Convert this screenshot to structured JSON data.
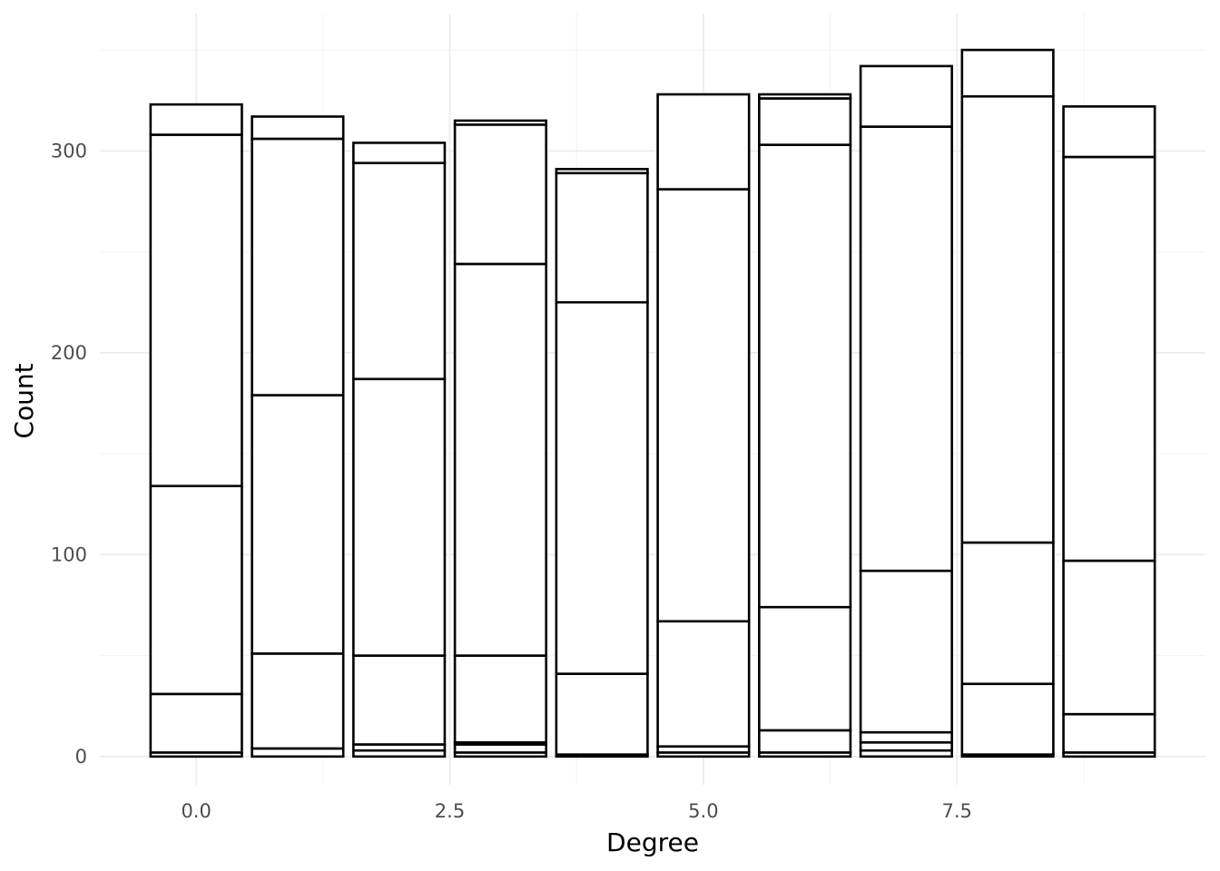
{
  "chart_data": {
    "type": "bar",
    "stacked": true,
    "xlabel": "Degree",
    "ylabel": "Count",
    "xlim": [
      -0.95,
      9.95
    ],
    "ylim": [
      -14,
      368
    ],
    "x_ticks": [
      0,
      2.5,
      5,
      7.5
    ],
    "x_tick_labels": [
      "0.0",
      "2.5",
      "5.0",
      "7.5"
    ],
    "y_ticks": [
      0,
      100,
      200,
      300
    ],
    "y_tick_labels": [
      "0",
      "100",
      "200",
      "300"
    ],
    "grid": true,
    "legend": "none",
    "bar_width": 0.9,
    "x": [
      0,
      1,
      2,
      3,
      4,
      5,
      6,
      7,
      8,
      9
    ],
    "stack_boundaries": [
      [
        0,
        2,
        31,
        134,
        308,
        323
      ],
      [
        0,
        4,
        51,
        179,
        306,
        317
      ],
      [
        0,
        3,
        6,
        50,
        187,
        294,
        304
      ],
      [
        0,
        2,
        6,
        7,
        50,
        244,
        313,
        315
      ],
      [
        0,
        1,
        41,
        225,
        289,
        291
      ],
      [
        0,
        2,
        5,
        67,
        281,
        328
      ],
      [
        0,
        2,
        13,
        74,
        303,
        326,
        328
      ],
      [
        0,
        3,
        7,
        12,
        92,
        312,
        342
      ],
      [
        0,
        1,
        36,
        106,
        327,
        350
      ],
      [
        0,
        2,
        21,
        97,
        297,
        322
      ]
    ]
  }
}
